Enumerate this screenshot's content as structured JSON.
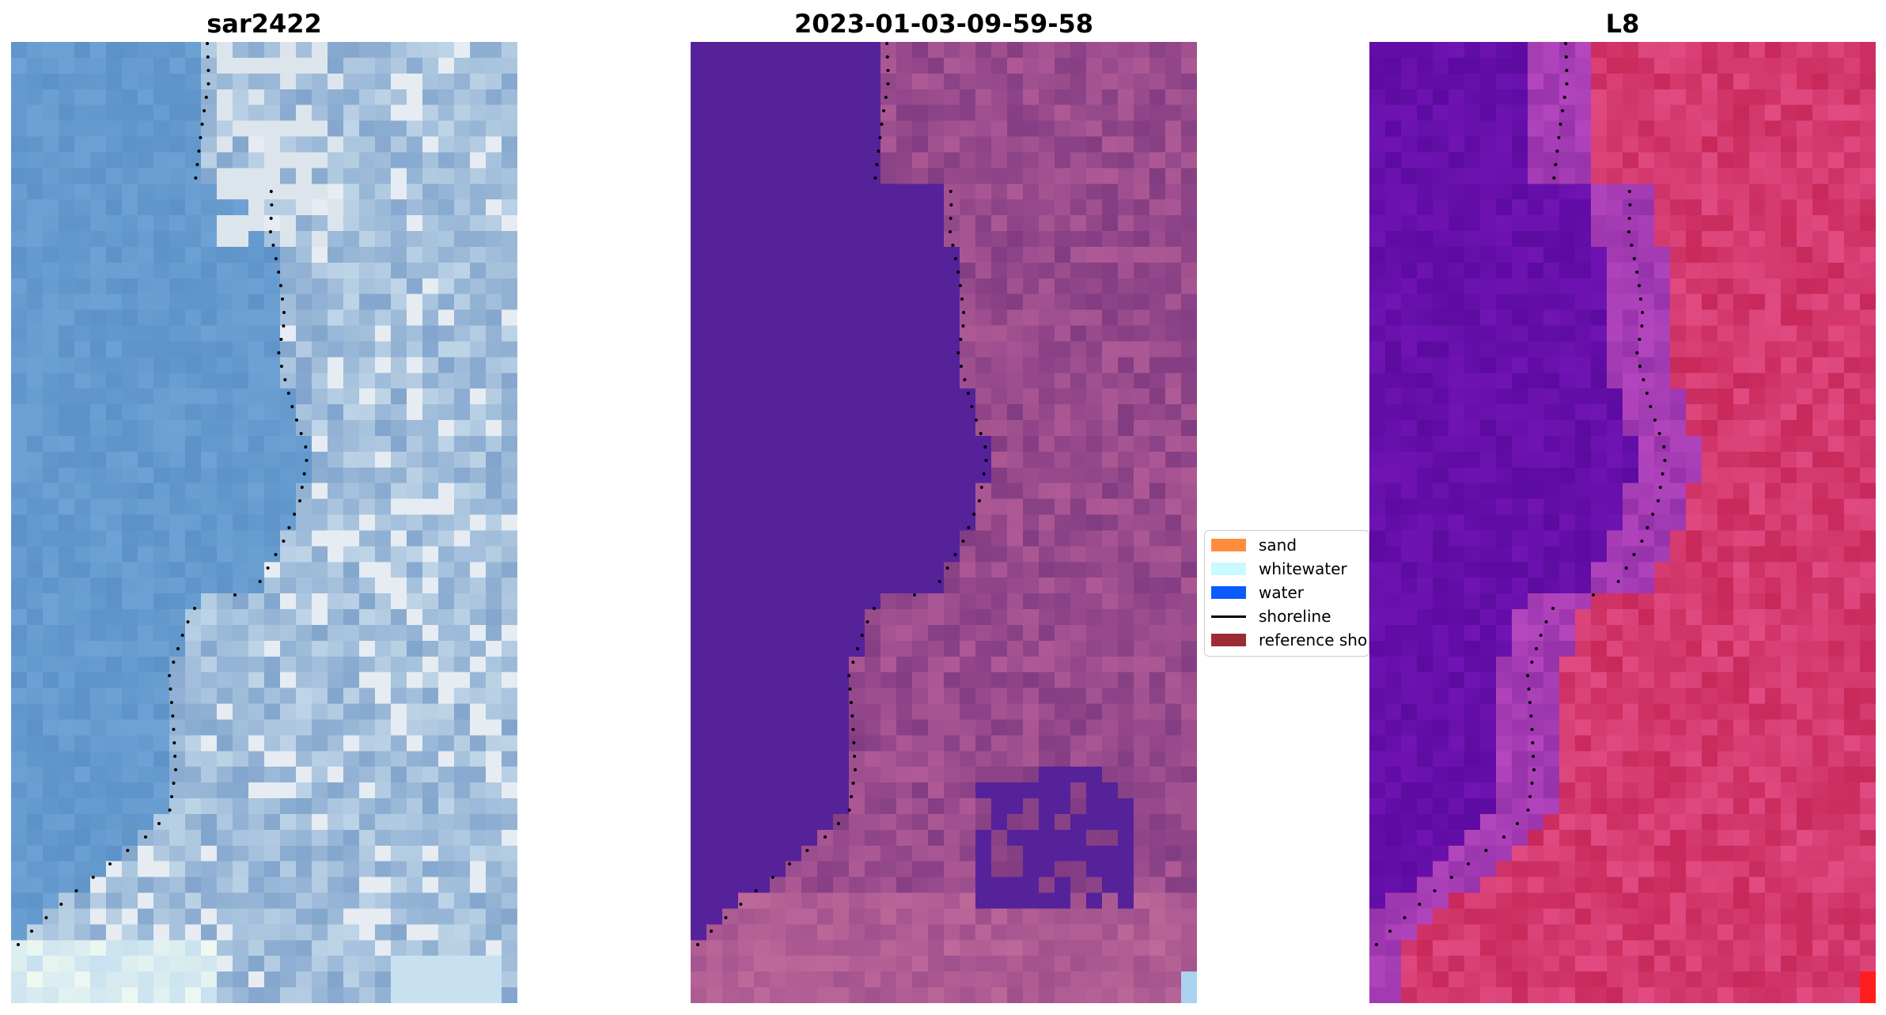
{
  "panels": [
    {
      "title": "sar2422"
    },
    {
      "title": "2023-01-03-09-59-58"
    },
    {
      "title": "L8"
    }
  ],
  "legend": {
    "items": [
      {
        "label": "sand",
        "color": "#ff8c3c",
        "kind": "patch"
      },
      {
        "label": "whitewater",
        "color": "#c8faff",
        "kind": "patch"
      },
      {
        "label": "water",
        "color": "#0a5aff",
        "kind": "patch"
      },
      {
        "label": "shoreline",
        "color": "#000000",
        "kind": "line"
      },
      {
        "label": "reference shoreline",
        "color": "#9b2c33",
        "kind": "patch"
      }
    ]
  },
  "colors": {
    "rgb_water": "#5b93c7",
    "rgb_foam": "#dfe9f0",
    "class_water_overlay": "#55229a",
    "class_land": "#8a4a8f",
    "ndwi_water": "#5a0aa6",
    "ndwi_land": "#c8205a",
    "shoreline_dots": "#000000"
  }
}
